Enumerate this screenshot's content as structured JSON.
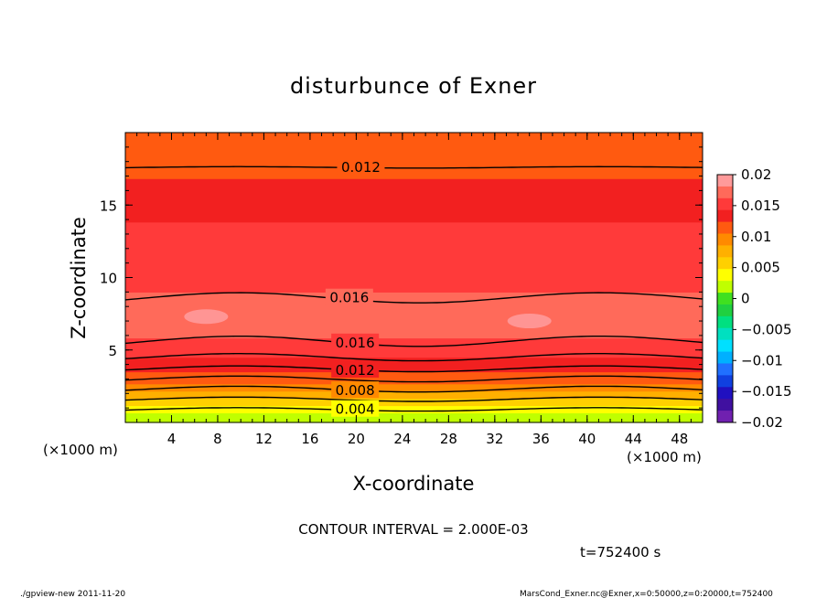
{
  "chart_data": {
    "type": "contour",
    "title": "disturbunce of Exner",
    "xlabel": "X-coordinate",
    "ylabel": "Z-coordinate",
    "x_unit": "(×1000 m)",
    "z_unit": "(×1000 m)",
    "xlim": [
      0,
      50
    ],
    "ylim": [
      0,
      20
    ],
    "x_ticks": [
      4,
      8,
      12,
      16,
      20,
      24,
      28,
      32,
      36,
      40,
      44,
      48
    ],
    "y_ticks": [
      5,
      10,
      15
    ],
    "contour_interval_text": "CONTOUR INTERVAL = 2.000E-03",
    "contour_labels": [
      {
        "value": "0.012",
        "x": 18.5,
        "z": 17.6
      },
      {
        "value": "0.016",
        "x": 17.5,
        "z": 8.6
      },
      {
        "value": "0.016",
        "x": 18.0,
        "z": 5.5
      },
      {
        "value": "0.012",
        "x": 18.0,
        "z": 3.6
      },
      {
        "value": "0.008",
        "x": 18.0,
        "z": 2.2
      },
      {
        "value": "0.004",
        "x": 18.0,
        "z": 0.9
      }
    ],
    "field_profile": [
      {
        "z": 0.0,
        "value": 0.001
      },
      {
        "z": 1.0,
        "value": 0.004
      },
      {
        "z": 2.0,
        "value": 0.008
      },
      {
        "z": 3.0,
        "value": 0.0115
      },
      {
        "z": 4.0,
        "value": 0.0135
      },
      {
        "z": 5.0,
        "value": 0.015
      },
      {
        "z": 6.5,
        "value": 0.0172
      },
      {
        "z": 7.5,
        "value": 0.0178
      },
      {
        "z": 9.0,
        "value": 0.0161
      },
      {
        "z": 11.0,
        "value": 0.0155
      },
      {
        "z": 13.0,
        "value": 0.0148
      },
      {
        "z": 15.0,
        "value": 0.0135
      },
      {
        "z": 17.5,
        "value": 0.012
      },
      {
        "z": 20.0,
        "value": 0.0108
      }
    ],
    "colorbar": {
      "levels": [
        0.02,
        0.015,
        0.01,
        0.005,
        0,
        -0.005,
        -0.01,
        -0.015,
        -0.02
      ],
      "tick_labels": [
        "0.02",
        "0.015",
        "0.01",
        "0.005",
        "0",
        "−0.005",
        "−0.01",
        "−0.015",
        "−0.02"
      ],
      "colors_top_to_bottom": [
        "#ff9a9a",
        "#ff6a5a",
        "#ff3a3a",
        "#f22020",
        "#ff5a10",
        "#ff8a00",
        "#ffb000",
        "#ffd000",
        "#ffff00",
        "#c0ff00",
        "#40e020",
        "#20d040",
        "#00e080",
        "#00e0c0",
        "#00e0ff",
        "#00b0ff",
        "#2070ff",
        "#1040e0",
        "#2010c0",
        "#4010a0",
        "#7020b0"
      ]
    },
    "time_label": "t=752400 s"
  },
  "footer": {
    "left": "./gpview-new  2011-11-20",
    "right": "MarsCond_Exner.nc@Exner,x=0:50000,z=0:20000,t=752400"
  }
}
